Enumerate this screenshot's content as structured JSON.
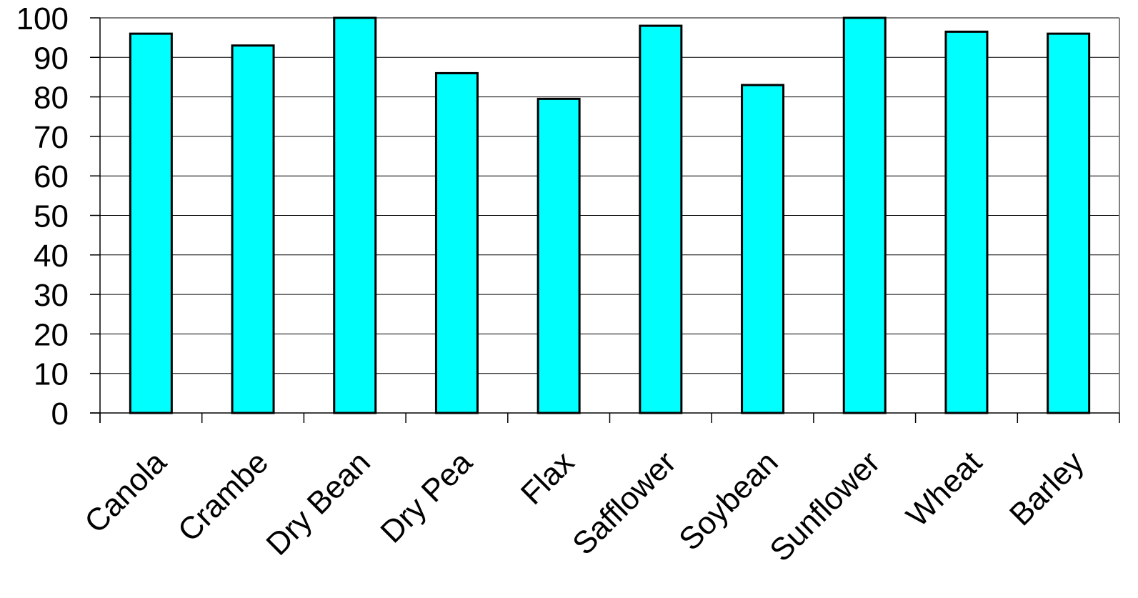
{
  "chart_data": {
    "type": "bar",
    "title": "",
    "xlabel": "",
    "ylabel": "",
    "categories": [
      "Canola",
      "Crambe",
      "Dry Bean",
      "Dry Pea",
      "Flax",
      "Safflower",
      "Soybean",
      "Sunflower",
      "Wheat",
      "Barley"
    ],
    "values": [
      96,
      93,
      100,
      86,
      79.5,
      98,
      83,
      100,
      96.5,
      96
    ],
    "ylim": [
      0,
      100
    ],
    "yticks": [
      "0",
      "10",
      "20",
      "30",
      "40",
      "50",
      "60",
      "70",
      "80",
      "90",
      "100"
    ],
    "grid": true,
    "legend": "none",
    "bar_color": "#00FFFF",
    "bar_edge_color": "#000000",
    "grid_color": "#000000",
    "frame_color": "#808080"
  }
}
